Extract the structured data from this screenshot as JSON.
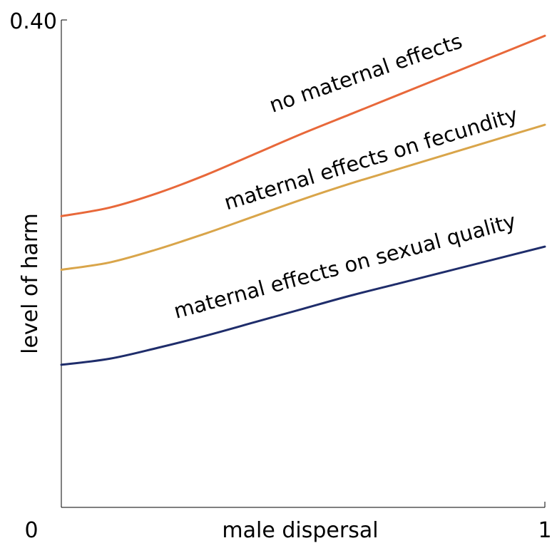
{
  "chart_data": {
    "type": "line",
    "title": "",
    "xlabel": "male dispersal",
    "ylabel": "level of harm",
    "xlim": [
      0,
      1
    ],
    "ylim": [
      0,
      0.4
    ],
    "x_tick_labels": [
      "0",
      "1"
    ],
    "y_tick_labels": [
      "0.40"
    ],
    "grid": false,
    "legend": "none",
    "x": [
      0,
      0.1,
      0.2,
      0.3,
      0.4,
      0.5,
      0.6,
      0.7,
      0.8,
      0.9,
      1.0
    ],
    "series": [
      {
        "name": "no maternal effects",
        "color": "#e8683a",
        "values": [
          0.239,
          0.246,
          0.258,
          0.273,
          0.29,
          0.307,
          0.323,
          0.339,
          0.355,
          0.371,
          0.387
        ]
      },
      {
        "name": "maternal effects on fecundity",
        "color": "#d9a54a",
        "values": [
          0.195,
          0.201,
          0.212,
          0.225,
          0.239,
          0.253,
          0.266,
          0.278,
          0.29,
          0.302,
          0.314
        ]
      },
      {
        "name": "maternal effects on sexual quality",
        "color": "#1f2d6b",
        "values": [
          0.117,
          0.122,
          0.131,
          0.141,
          0.152,
          0.163,
          0.174,
          0.184,
          0.194,
          0.204,
          0.214
        ]
      }
    ]
  }
}
